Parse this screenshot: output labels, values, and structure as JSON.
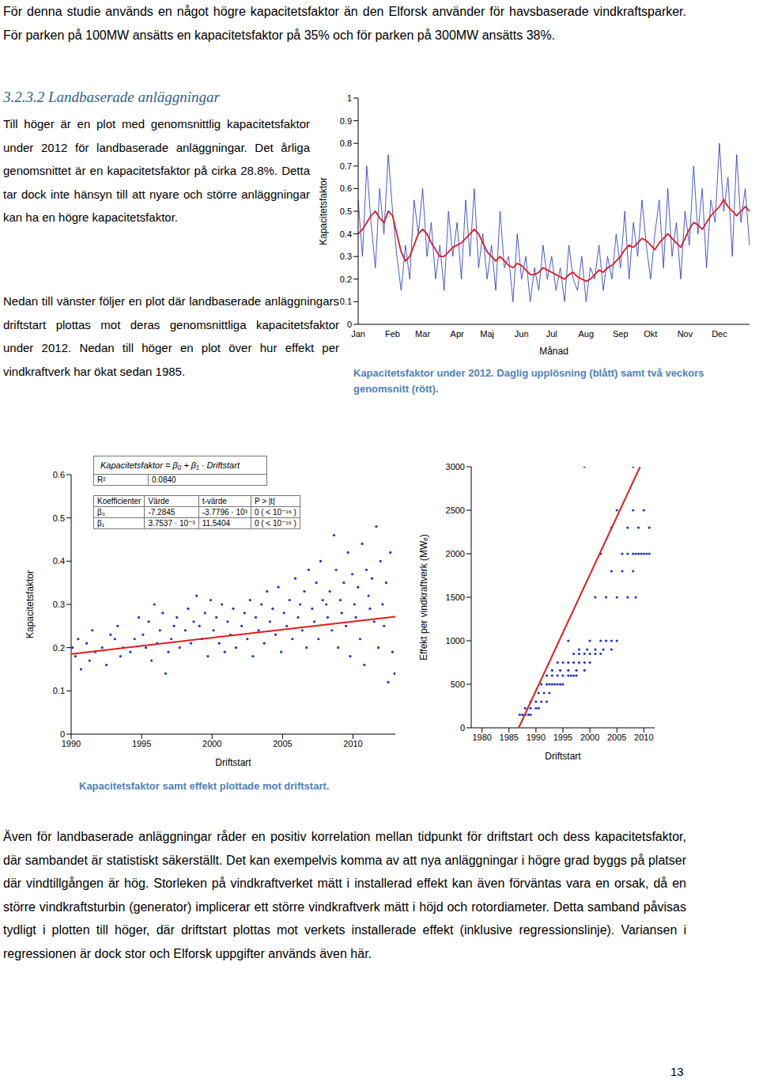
{
  "document": {
    "intro": "För denna studie används en något högre kapacitetsfaktor än den Elforsk använder för havsbaserade vindkraftsparker. För parken på 100MW ansätts en kapacitetsfaktor på 35% och för parken på 300MW ansätts 38%.",
    "heading": "3.2.3.2 Landbaserade anläggningar",
    "paragraphs": [
      "Till höger är en plot med genomsnittlig kapacitetsfaktor under 2012 för landbaserade anläggningar. Det årliga genomsnittet är en kapacitetsfaktor på cirka 28.8%. Detta tar dock inte hänsyn till att nyare och större anläggningar kan ha en högre kapacitetsfaktor.",
      "Nedan till vänster följer en plot där landbaserade anläggningars driftstart plottas mot deras genomsnittliga kapacitetsfaktor under 2012. Nedan till höger en plot över hur effekt per vindkraftverk har ökat sedan 1985.",
      "Även för landbaserade anläggningar råder en positiv korrelation mellan tidpunkt för driftstart och dess kapacitetsfaktor, där sambandet är statistiskt säkerställt. Det kan exempelvis komma av att nya anläggningar i högre grad byggs på platser där vindtillgången är hög. Storleken på vindkraftverket mätt i installerad effekt kan även förväntas vara en orsak, då en större vindkraftsturbin (generator) implicerar ett större vindkraftverk mätt i höjd och rotordiameter. Detta samband påvisas tydligt i plotten till höger, där driftstart plottas mot verkets installerade effekt (inklusive regressionslinje). Variansen i regressionen är dock stor och Elforsk uppgifter används även här."
    ],
    "captions": [
      "Kapacitetsfaktor under 2012. Daglig upplösning (blått) samt två veckors genomsnitt (rött).",
      "Kapacitetsfaktor samt effekt plottade mot driftstart."
    ],
    "page_number": "13"
  },
  "chart_data": [
    {
      "type": "line",
      "y_label": "Kapacitetsfaktor",
      "x_label": "Månad",
      "categories": [
        "Jan",
        null,
        null,
        null,
        null,
        null,
        null,
        null,
        "Feb",
        null,
        null,
        null,
        null,
        null,
        null,
        "Mar",
        null,
        null,
        null,
        null,
        null,
        null,
        null,
        "Apr",
        null,
        null,
        null,
        null,
        null,
        null,
        "Maj",
        null,
        null,
        null,
        null,
        null,
        null,
        null,
        "Jun",
        null,
        null,
        null,
        null,
        null,
        null,
        "Jul",
        null,
        null,
        null,
        null,
        null,
        null,
        null,
        "Aug",
        null,
        null,
        null,
        null,
        null,
        null,
        null,
        "Sep",
        null,
        null,
        null,
        null,
        null,
        null,
        "Okt",
        null,
        null,
        null,
        null,
        null,
        null,
        null,
        "Nov",
        null,
        null,
        null,
        null,
        null,
        null,
        null,
        "Dec",
        null,
        null,
        null,
        null,
        null,
        null,
        null
      ],
      "series": [
        {
          "color": "#1a2fd0",
          "values": [
            0.55,
            0.3,
            0.7,
            0.45,
            0.25,
            0.6,
            0.4,
            0.75,
            0.5,
            0.3,
            0.15,
            0.35,
            0.2,
            0.55,
            0.4,
            0.6,
            0.3,
            0.45,
            0.2,
            0.35,
            0.15,
            0.5,
            0.3,
            0.45,
            0.2,
            0.55,
            0.3,
            0.6,
            0.25,
            0.4,
            0.2,
            0.35,
            0.15,
            0.5,
            0.25,
            0.3,
            0.1,
            0.4,
            0.2,
            0.3,
            0.1,
            0.25,
            0.15,
            0.35,
            0.2,
            0.3,
            0.15,
            0.25,
            0.1,
            0.35,
            0.2,
            0.15,
            0.3,
            0.1,
            0.25,
            0.2,
            0.35,
            0.15,
            0.3,
            0.2,
            0.4,
            0.25,
            0.5,
            0.2,
            0.45,
            0.3,
            0.55,
            0.35,
            0.2,
            0.4,
            0.55,
            0.25,
            0.6,
            0.3,
            0.45,
            0.2,
            0.5,
            0.35,
            0.7,
            0.4,
            0.6,
            0.25,
            0.55,
            0.45,
            0.8,
            0.5,
            0.65,
            0.3,
            0.75,
            0.45,
            0.6,
            0.35
          ]
        },
        {
          "color": "#e31a1c",
          "values": [
            0.4,
            0.42,
            0.45,
            0.48,
            0.5,
            0.47,
            0.45,
            0.5,
            0.48,
            0.4,
            0.32,
            0.28,
            0.3,
            0.35,
            0.4,
            0.42,
            0.4,
            0.36,
            0.33,
            0.3,
            0.3,
            0.32,
            0.34,
            0.35,
            0.36,
            0.38,
            0.4,
            0.42,
            0.4,
            0.36,
            0.32,
            0.3,
            0.28,
            0.3,
            0.28,
            0.26,
            0.25,
            0.27,
            0.26,
            0.24,
            0.22,
            0.22,
            0.23,
            0.25,
            0.24,
            0.23,
            0.22,
            0.21,
            0.2,
            0.22,
            0.23,
            0.21,
            0.2,
            0.19,
            0.2,
            0.22,
            0.24,
            0.23,
            0.25,
            0.26,
            0.28,
            0.3,
            0.33,
            0.35,
            0.34,
            0.36,
            0.38,
            0.37,
            0.35,
            0.33,
            0.36,
            0.38,
            0.4,
            0.38,
            0.36,
            0.34,
            0.38,
            0.42,
            0.45,
            0.44,
            0.42,
            0.45,
            0.48,
            0.5,
            0.52,
            0.55,
            0.52,
            0.5,
            0.48,
            0.5,
            0.52,
            0.5
          ]
        }
      ],
      "ylim": [
        0,
        1
      ],
      "yticks": [
        0,
        0.1,
        0.2,
        0.3,
        0.4,
        0.5,
        0.6,
        0.7,
        0.8,
        0.9,
        1
      ]
    },
    {
      "type": "scatter",
      "y_label": "Kapacitetsfaktor",
      "x_label": "Driftstart",
      "color": "#2233cc",
      "x": [
        1990.1,
        1990.3,
        1990.5,
        1990.7,
        1991.1,
        1991.3,
        1991.5,
        1991.7,
        1992.2,
        1992.5,
        1992.8,
        1993.1,
        1993.3,
        1993.5,
        1993.7,
        1994.2,
        1994.5,
        1994.8,
        1995.1,
        1995.3,
        1995.5,
        1995.7,
        1995.9,
        1996.1,
        1996.3,
        1996.5,
        1996.7,
        1996.9,
        1997.1,
        1997.3,
        1997.5,
        1997.7,
        1998.1,
        1998.3,
        1998.5,
        1998.7,
        1998.9,
        1999.1,
        1999.3,
        1999.5,
        1999.7,
        1999.9,
        2000.1,
        2000.3,
        2000.5,
        2000.7,
        2000.9,
        2001.1,
        2001.3,
        2001.5,
        2001.7,
        2002.1,
        2002.3,
        2002.5,
        2002.7,
        2002.9,
        2003.1,
        2003.3,
        2003.5,
        2003.7,
        2003.9,
        2004.1,
        2004.3,
        2004.5,
        2004.7,
        2004.9,
        2005.1,
        2005.3,
        2005.5,
        2005.7,
        2005.9,
        2006.1,
        2006.25,
        2006.4,
        2006.55,
        2006.7,
        2006.85,
        2007.1,
        2007.25,
        2007.4,
        2007.55,
        2007.7,
        2007.85,
        2008.1,
        2008.2,
        2008.35,
        2008.5,
        2008.65,
        2008.8,
        2008.95,
        2009.1,
        2009.2,
        2009.35,
        2009.5,
        2009.65,
        2009.8,
        2009.95,
        2010.1,
        2010.2,
        2010.35,
        2010.5,
        2010.65,
        2010.8,
        2010.95,
        2011.1,
        2011.2,
        2011.35,
        2011.5,
        2011.65,
        2011.8,
        2011.95,
        2012.1,
        2012.2,
        2012.35,
        2012.5,
        2012.65,
        2012.8,
        2012.95
      ],
      "values": [
        0.2,
        0.18,
        0.22,
        0.15,
        0.21,
        0.17,
        0.24,
        0.19,
        0.2,
        0.16,
        0.23,
        0.22,
        0.25,
        0.18,
        0.2,
        0.19,
        0.22,
        0.27,
        0.23,
        0.2,
        0.26,
        0.17,
        0.3,
        0.21,
        0.24,
        0.28,
        0.14,
        0.19,
        0.22,
        0.25,
        0.27,
        0.2,
        0.24,
        0.29,
        0.21,
        0.26,
        0.32,
        0.25,
        0.22,
        0.28,
        0.18,
        0.31,
        0.24,
        0.27,
        0.21,
        0.3,
        0.19,
        0.26,
        0.23,
        0.29,
        0.2,
        0.25,
        0.28,
        0.22,
        0.31,
        0.18,
        0.27,
        0.24,
        0.3,
        0.21,
        0.33,
        0.26,
        0.29,
        0.23,
        0.34,
        0.19,
        0.28,
        0.25,
        0.31,
        0.22,
        0.36,
        0.27,
        0.3,
        0.24,
        0.33,
        0.2,
        0.38,
        0.29,
        0.26,
        0.35,
        0.22,
        0.4,
        0.31,
        0.3,
        0.27,
        0.33,
        0.24,
        0.46,
        0.38,
        0.2,
        0.31,
        0.28,
        0.35,
        0.25,
        0.42,
        0.18,
        0.37,
        0.3,
        0.27,
        0.34,
        0.22,
        0.44,
        0.16,
        0.38,
        0.32,
        0.29,
        0.36,
        0.26,
        0.48,
        0.2,
        0.4,
        0.3,
        0.25,
        0.35,
        0.12,
        0.42,
        0.19,
        0.14
      ],
      "regression": {
        "color": "#e31a1c",
        "formula": "Kapacitetsfaktor = β₀ + β₁ · Driftstart",
        "r2_name": "R²",
        "r2": {
          "value": 0.084,
          "label": "0.0840"
        },
        "columns": [
          "Koefficienter",
          "Värde",
          "t-värde",
          "P > |t|"
        ],
        "coefficients": [
          {
            "name": "β₀",
            "value": -7.2845,
            "label": "-7.2845",
            "t": "-3.7796 · 10³",
            "p": "0 ( < 10⁻¹⁶ )"
          },
          {
            "name": "β₁",
            "value": 0.0037537,
            "label": "3.7537 · 10⁻³",
            "t": "11.5404",
            "p": "0 ( < 10⁻¹⁶ )"
          }
        ]
      },
      "xlim": [
        1990,
        2013
      ],
      "xticks": [
        1990,
        1995,
        2000,
        2005,
        2010
      ],
      "ylim": [
        0,
        0.6
      ],
      "yticks": [
        0,
        0.1,
        0.2,
        0.3,
        0.4,
        0.5,
        0.6
      ]
    },
    {
      "type": "scatter",
      "y_label": "Effekt per vindkraftverk (MWₑ)",
      "x_label": "Driftstart",
      "color": "#2233cc",
      "x": [
        1987,
        1987.5,
        1988,
        1988.6,
        1989,
        1988,
        1989,
        1990,
        1990.5,
        1989,
        1990,
        1991,
        1992,
        1990.5,
        1991.5,
        1992.5,
        1991,
        1992,
        1992.5,
        1993,
        1993.5,
        1994,
        1994.5,
        1995,
        1992,
        1993,
        1994,
        1995,
        1996,
        1996.5,
        1997,
        1997.5,
        1993,
        1994.5,
        1996,
        1997.5,
        1999,
        1994,
        1995,
        1996,
        1997,
        1998,
        1999,
        2000,
        1997,
        1998,
        1999,
        2000,
        2001,
        2002,
        1998,
        1999.5,
        2001,
        2002.5,
        2004,
        1996,
        2000,
        2002,
        2003,
        2004,
        2005,
        2001,
        2003,
        2005,
        2007,
        2008.5,
        2004,
        2006,
        2008,
        2002,
        2006,
        2007,
        2008,
        2008.5,
        2009,
        2009.5,
        2010,
        2010.5,
        2011,
        2004,
        2007,
        2009,
        2011,
        2005,
        2008,
        2010,
        1999,
        2008
      ],
      "values": [
        150,
        150,
        150,
        150,
        150,
        225,
        225,
        225,
        225,
        300,
        300,
        300,
        300,
        400,
        400,
        400,
        500,
        500,
        500,
        500,
        500,
        500,
        500,
        500,
        600,
        600,
        600,
        600,
        600,
        600,
        600,
        600,
        660,
        660,
        660,
        660,
        660,
        750,
        750,
        750,
        750,
        750,
        750,
        750,
        850,
        850,
        850,
        850,
        850,
        850,
        900,
        900,
        900,
        900,
        900,
        1000,
        1000,
        1000,
        1000,
        1000,
        1000,
        1500,
        1500,
        1500,
        1500,
        1500,
        1800,
        1800,
        1800,
        2000,
        2000,
        2000,
        2000,
        2000,
        2000,
        2000,
        2000,
        2000,
        2000,
        2300,
        2300,
        2300,
        2300,
        2500,
        2500,
        2500,
        3000,
        3000
      ],
      "regression": {
        "color": "#e31a1c",
        "x": [
          1986.8,
          2009.3
        ],
        "values": [
          0,
          3000
        ]
      },
      "xlim": [
        1978,
        2012
      ],
      "xticks": [
        1980,
        1985,
        1990,
        1995,
        2000,
        2005,
        2010
      ],
      "ylim": [
        0,
        3000
      ],
      "yticks": [
        0,
        500,
        1000,
        1500,
        2000,
        2500,
        3000
      ]
    }
  ]
}
